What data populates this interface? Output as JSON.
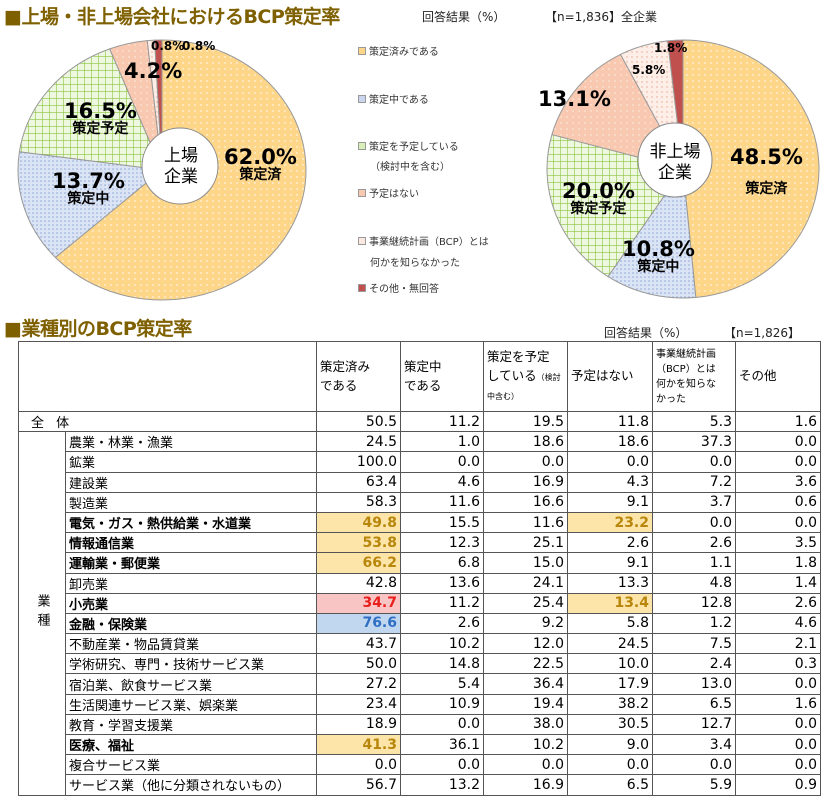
{
  "header": {
    "title": "■上場・非上場会社におけるBCP策定率",
    "unit": "回答結果（%）",
    "sample": "【n=1,836】全企業"
  },
  "legend": [
    {
      "label": "策定済みである",
      "color": "#fdd68a"
    },
    {
      "label": "策定中である",
      "color": "#c9d6ee"
    },
    {
      "label": "策定を予定している",
      "label2": "（検討中を含む）",
      "color": "#d8efb8"
    },
    {
      "label": "予定はない",
      "color": "#f8c8b0"
    },
    {
      "label": "事業継続計画（BCP）とは",
      "label2": "何かを知らなかった",
      "color": "#fbe8e0"
    },
    {
      "label": "その他・無回答",
      "color": "#c0504d"
    }
  ],
  "chart_data": [
    {
      "type": "pie",
      "title": "上場企業",
      "hole_line1": "上場",
      "hole_line2": "企業",
      "categories": [
        "策定済みである",
        "策定中である",
        "策定を予定している（検討中を含む）",
        "予定はない",
        "事業継続計画（BCP）とは何かを知らなかった",
        "その他・無回答"
      ],
      "values": [
        62.0,
        13.7,
        16.5,
        4.2,
        0.8,
        0.8
      ],
      "labels": [
        "62.0%",
        "13.7%",
        "16.5%",
        "4.2%",
        "0.8%",
        "0.8%"
      ],
      "sublabels": [
        "策定済",
        "策定中",
        "策定予定"
      ]
    },
    {
      "type": "pie",
      "title": "非上場企業",
      "hole_line1": "非上場",
      "hole_line2": "企業",
      "categories": [
        "策定済みである",
        "策定中である",
        "策定を予定している（検討中を含む）",
        "予定はない",
        "事業継続計画（BCP）とは何かを知らなかった",
        "その他・無回答"
      ],
      "values": [
        48.5,
        10.8,
        20.0,
        13.1,
        5.8,
        1.8
      ],
      "labels": [
        "48.5%",
        "10.8%",
        "20.0%",
        "13.1%",
        "5.8%",
        "1.8%"
      ],
      "sublabels": [
        "策定済",
        "策定中",
        "策定予定"
      ]
    }
  ],
  "table": {
    "title": "■業種別のBCP策定率",
    "unit": "回答結果（%）",
    "sample": "【n=1,826】",
    "group_label": "業種",
    "columns": [
      "策定済み\nである",
      "策定中\nである",
      "策定を予定\nしている",
      "予定はない",
      "事業継続計画\n（BCP）とは\n何かを知らな\nかった",
      "その他"
    ],
    "col3_note": "（検討中含む）",
    "total": {
      "name": "全 体",
      "values": [
        "50.5",
        "11.2",
        "19.5",
        "11.8",
        "5.3",
        "1.6"
      ]
    },
    "rows": [
      {
        "name": "農業・林業・漁業",
        "values": [
          "24.5",
          "1.0",
          "18.6",
          "18.6",
          "37.3",
          "0.0"
        ]
      },
      {
        "name": "鉱業",
        "values": [
          "100.0",
          "0.0",
          "0.0",
          "0.0",
          "0.0",
          "0.0"
        ]
      },
      {
        "name": "建設業",
        "values": [
          "63.4",
          "4.6",
          "16.9",
          "4.3",
          "7.2",
          "3.6"
        ]
      },
      {
        "name": "製造業",
        "values": [
          "58.3",
          "11.6",
          "16.6",
          "9.1",
          "3.7",
          "0.6"
        ]
      },
      {
        "name": "電気・ガス・熱供給業・水道業",
        "bold": true,
        "values": [
          "49.8",
          "15.5",
          "11.6",
          "23.2",
          "0.0",
          "0.0"
        ],
        "hl": {
          "0": "orange",
          "3": "orange"
        }
      },
      {
        "name": "情報通信業",
        "bold": true,
        "values": [
          "53.8",
          "12.3",
          "25.1",
          "2.6",
          "2.6",
          "3.5"
        ],
        "hl": {
          "0": "orange"
        }
      },
      {
        "name": "運輸業・郵便業",
        "bold": true,
        "values": [
          "66.2",
          "6.8",
          "15.0",
          "9.1",
          "1.1",
          "1.8"
        ],
        "hl": {
          "0": "orange"
        }
      },
      {
        "name": "卸売業",
        "values": [
          "42.8",
          "13.6",
          "24.1",
          "13.3",
          "4.8",
          "1.4"
        ]
      },
      {
        "name": "小売業",
        "bold": true,
        "values": [
          "34.7",
          "11.2",
          "25.4",
          "13.4",
          "12.8",
          "2.6"
        ],
        "hl": {
          "0": "red",
          "3": "orange"
        }
      },
      {
        "name": "金融・保険業",
        "bold": true,
        "values": [
          "76.6",
          "2.6",
          "9.2",
          "5.8",
          "1.2",
          "4.6"
        ],
        "hl": {
          "0": "blue"
        }
      },
      {
        "name": "不動産業・物品賃貸業",
        "values": [
          "43.7",
          "10.2",
          "12.0",
          "24.5",
          "7.5",
          "2.1"
        ]
      },
      {
        "name": "学術研究、専門・技術サービス業",
        "values": [
          "50.0",
          "14.8",
          "22.5",
          "10.0",
          "2.4",
          "0.3"
        ]
      },
      {
        "name": "宿泊業、飲食サービス業",
        "values": [
          "27.2",
          "5.4",
          "36.4",
          "17.9",
          "13.0",
          "0.0"
        ]
      },
      {
        "name": "生活関連サービス業、娯楽業",
        "values": [
          "23.4",
          "10.9",
          "19.4",
          "38.2",
          "6.5",
          "1.6"
        ]
      },
      {
        "name": "教育・学習支援業",
        "values": [
          "18.9",
          "0.0",
          "38.0",
          "30.5",
          "12.7",
          "0.0"
        ]
      },
      {
        "name": "医療、福祉",
        "bold": true,
        "values": [
          "41.3",
          "36.1",
          "10.2",
          "9.0",
          "3.4",
          "0.0"
        ],
        "hl": {
          "0": "orange"
        }
      },
      {
        "name": "複合サービス業",
        "values": [
          "0.0",
          "0.0",
          "0.0",
          "0.0",
          "0.0",
          "0.0"
        ]
      },
      {
        "name": "サービス業（他に分類されないもの）",
        "values": [
          "56.7",
          "13.2",
          "16.9",
          "6.5",
          "5.9",
          "0.9"
        ]
      }
    ]
  }
}
